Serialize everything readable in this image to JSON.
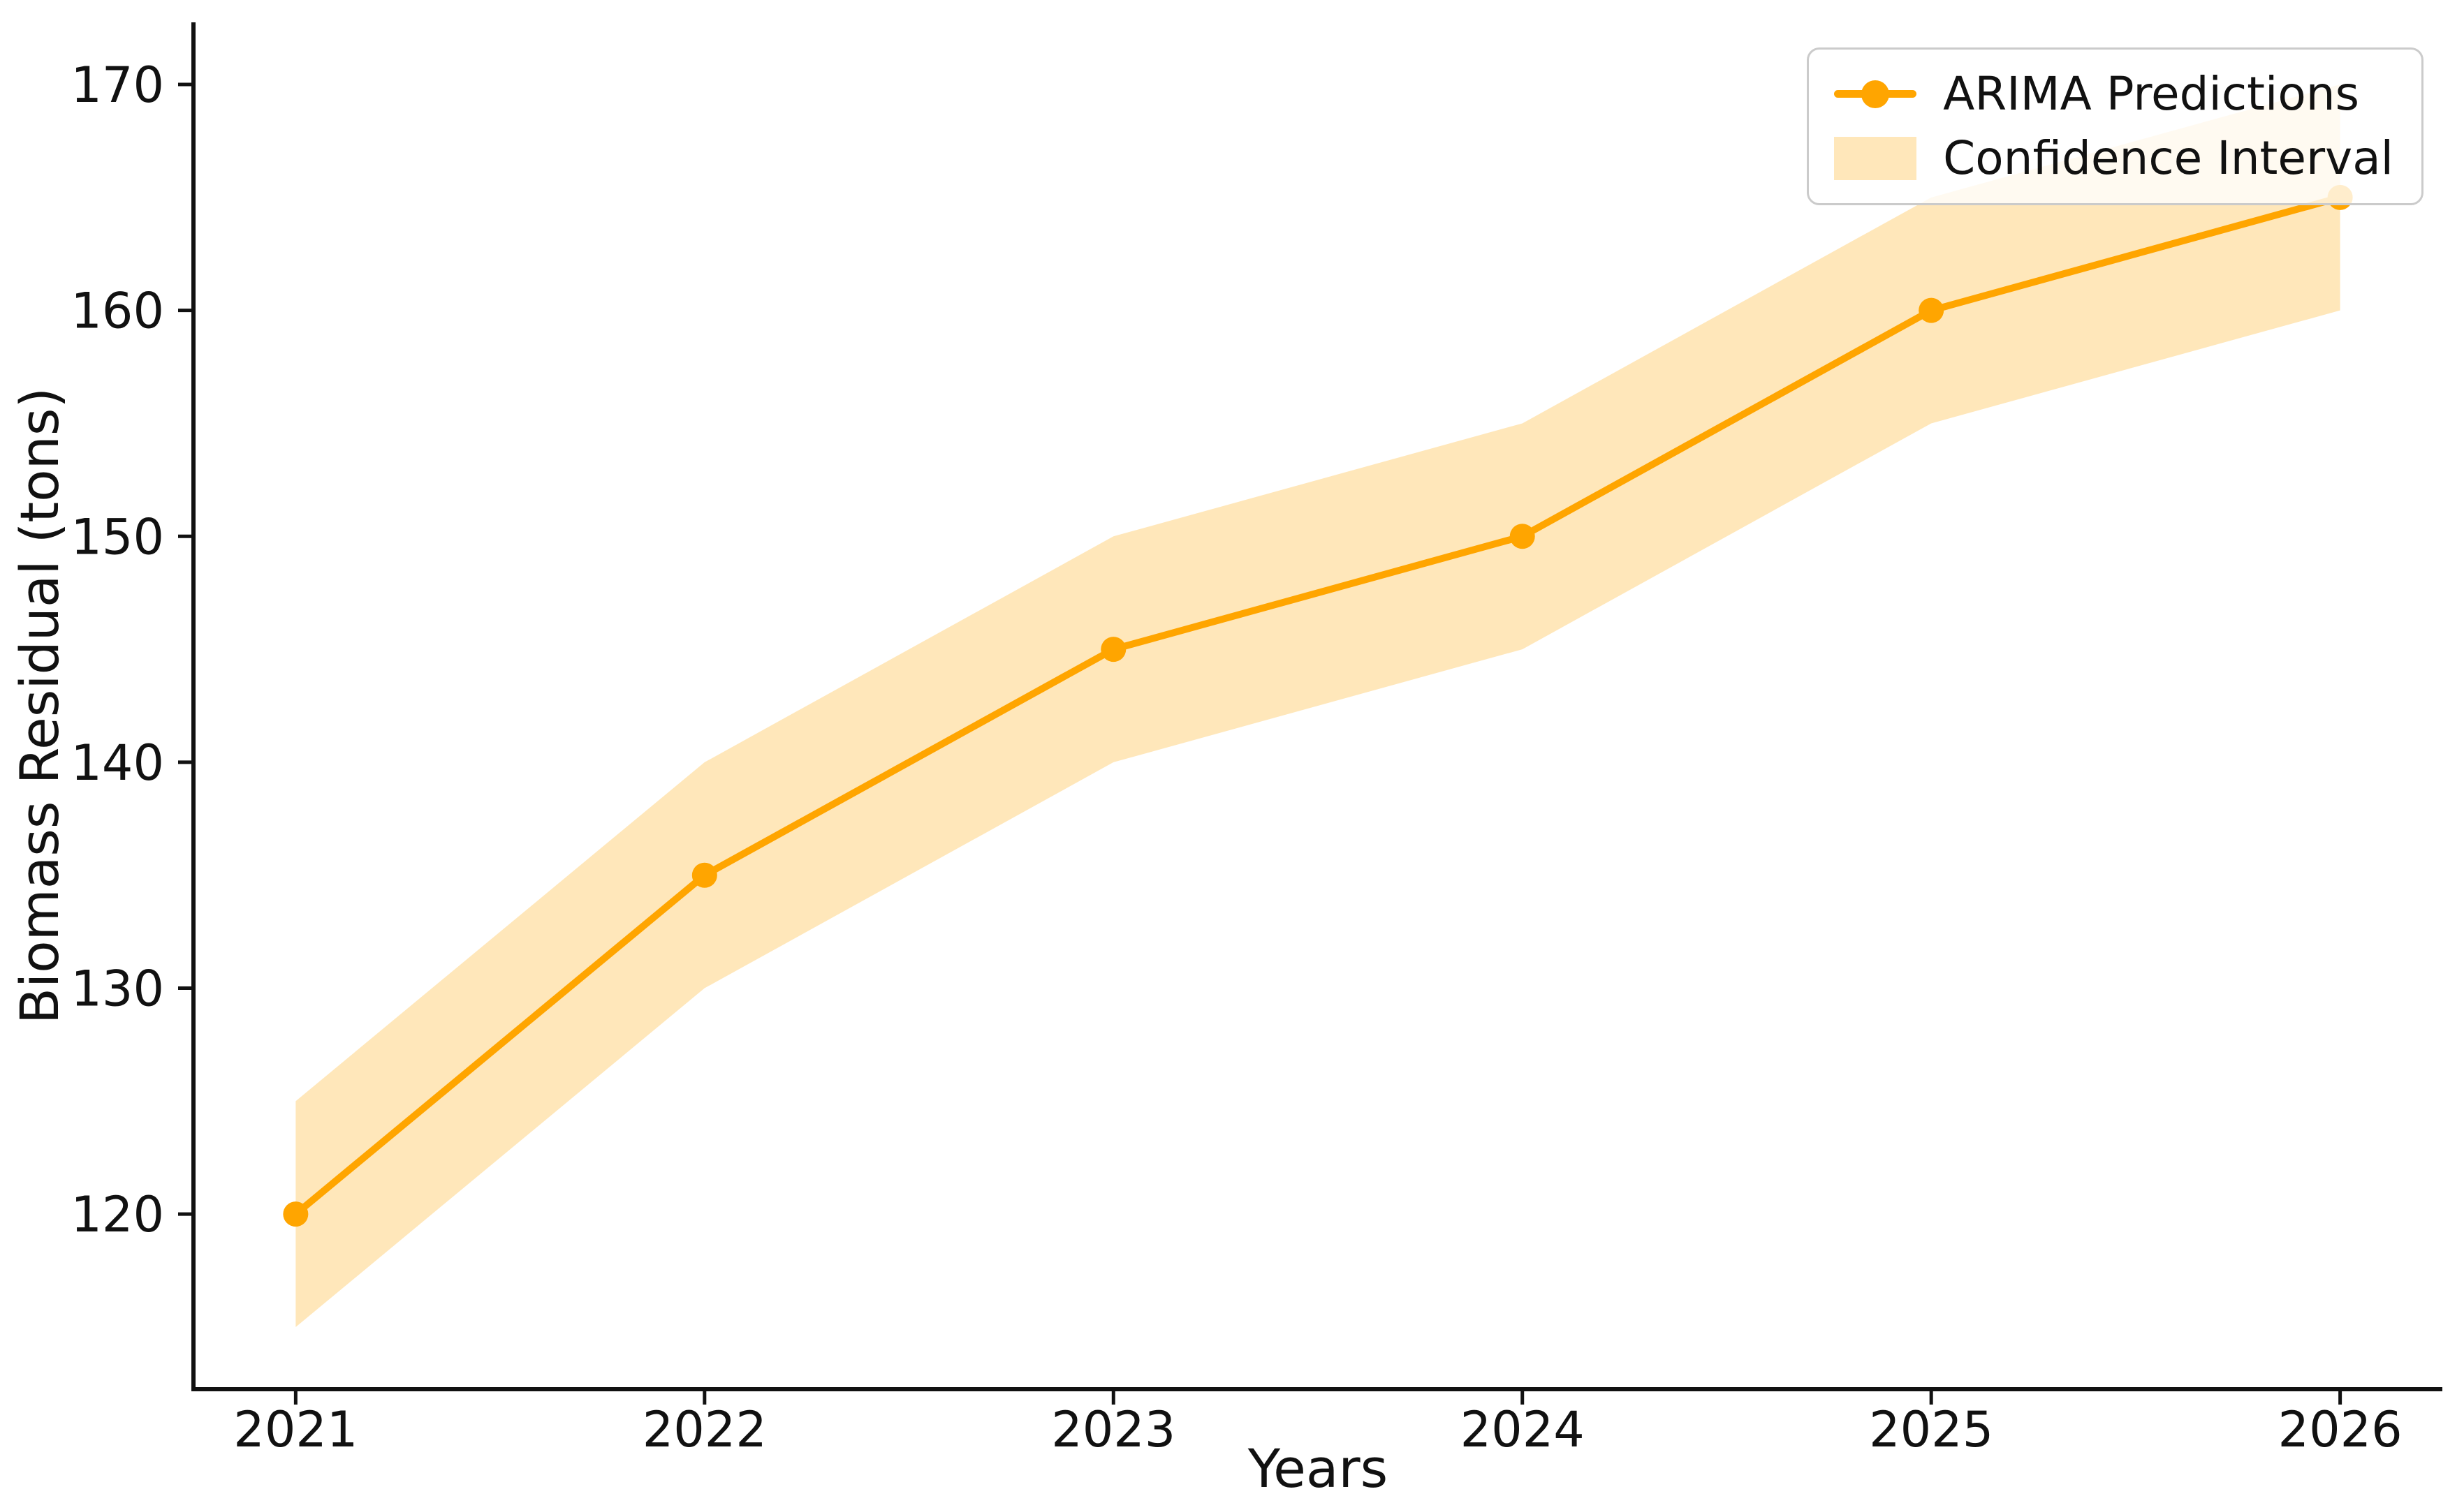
{
  "figure": {
    "background": "#ffffff",
    "text_color": "#111111",
    "spine_color": "#111111"
  },
  "chart_data": {
    "type": "line",
    "title": "",
    "xlabel": "Years",
    "ylabel": "Biomass Residual (tons)",
    "x": [
      2021,
      2022,
      2023,
      2024,
      2025,
      2026
    ],
    "series": [
      {
        "name": "ARIMA Predictions",
        "values": [
          120,
          135,
          145,
          150,
          160,
          165
        ],
        "color": "#FFA500",
        "marker": "circle",
        "line_width": 10,
        "marker_radius": 18
      }
    ],
    "confidence_interval": {
      "name": "Confidence Interval",
      "lower": [
        115,
        130,
        140,
        145,
        155,
        160
      ],
      "upper": [
        125,
        140,
        150,
        155,
        165,
        170
      ],
      "color": "#FFA500",
      "opacity": 0.27
    },
    "x_ticks": [
      "2021",
      "2022",
      "2023",
      "2024",
      "2025",
      "2026"
    ],
    "y_ticks": [
      "120",
      "130",
      "140",
      "150",
      "160",
      "170"
    ],
    "xlim": [
      2020.75,
      2026.25
    ],
    "ylim": [
      112.25,
      172.75
    ],
    "grid": false,
    "legend": {
      "position": "upper right",
      "entries": [
        {
          "label": "ARIMA Predictions",
          "type": "line-marker",
          "color": "#FFA500",
          "opacity": 1
        },
        {
          "label": "Confidence Interval",
          "type": "patch",
          "color": "#FFA500",
          "opacity": 0.27
        }
      ]
    }
  }
}
